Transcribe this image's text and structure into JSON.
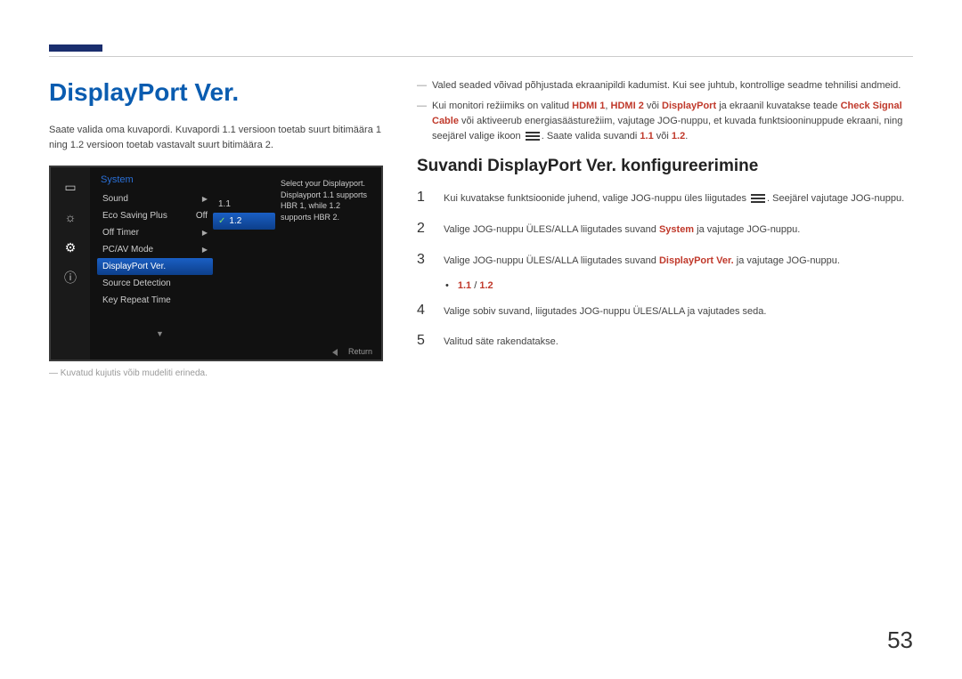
{
  "page": {
    "number": "53"
  },
  "h1": "DisplayPort Ver.",
  "intro": "Saate valida oma kuvapordi. Kuvapordi 1.1 versioon toetab suurt bitimäära 1 ning 1.2 versioon toetab vastavalt suurt bitimäära 2.",
  "osd": {
    "section_title": "System",
    "sidebar_icons": [
      "monitor",
      "sun",
      "gear",
      "info"
    ],
    "selected_sidebar": 2,
    "items": [
      {
        "label": "Sound",
        "value": "",
        "arrow": true
      },
      {
        "label": "Eco Saving Plus",
        "value": "Off",
        "arrow": false
      },
      {
        "label": "Off Timer",
        "value": "",
        "arrow": true
      },
      {
        "label": "PC/AV Mode",
        "value": "",
        "arrow": true
      },
      {
        "label": "DisplayPort Ver.",
        "value": "",
        "arrow": false,
        "selected": true
      },
      {
        "label": "Source Detection",
        "value": "",
        "arrow": false
      },
      {
        "label": "Key Repeat Time",
        "value": "",
        "arrow": false
      }
    ],
    "options": [
      {
        "label": "1.1",
        "selected": false
      },
      {
        "label": "1.2",
        "selected": true
      }
    ],
    "description": "Select your Displayport. Displayport 1.1 supports HBR 1, while 1.2 supports HBR 2.",
    "footer": "Return"
  },
  "caption": "―  Kuvatud kujutis võib mudeliti erineda.",
  "notes": [
    {
      "text": "Valed seaded võivad põhjustada ekraanipildi kadumist. Kui see juhtub, kontrollige seadme tehnilisi andmeid."
    },
    {
      "parts": [
        {
          "t": "Kui monitori režiimiks on valitud "
        },
        {
          "t": "HDMI 1",
          "accent": true
        },
        {
          "t": ", "
        },
        {
          "t": "HDMI 2",
          "accent": true
        },
        {
          "t": " või "
        },
        {
          "t": "DisplayPort",
          "accent": true
        },
        {
          "t": " ja ekraanil kuvatakse teade "
        },
        {
          "t": "Check Signal Cable",
          "accent": true
        },
        {
          "t": " või aktiveerub energiasäästurežiim, vajutage JOG-nuppu, et kuvada funktsiooninuppude ekraani, ning seejärel valige ikoon "
        },
        {
          "icon": true
        },
        {
          "t": ". Saate valida suvandi "
        },
        {
          "t": "1.1",
          "accent": true
        },
        {
          "t": " või "
        },
        {
          "t": "1.2",
          "accent": true
        },
        {
          "t": "."
        }
      ]
    }
  ],
  "h2": "Suvandi DisplayPort Ver. konfigureerimine",
  "steps": [
    {
      "n": "1",
      "parts": [
        {
          "t": "Kui kuvatakse funktsioonide juhend, valige JOG-nuppu üles liigutades "
        },
        {
          "icon": true
        },
        {
          "t": ". Seejärel vajutage JOG-nuppu."
        }
      ]
    },
    {
      "n": "2",
      "parts": [
        {
          "t": "Valige JOG-nuppu ÜLES/ALLA liigutades suvand "
        },
        {
          "t": "System",
          "accent": true
        },
        {
          "t": " ja vajutage JOG-nuppu."
        }
      ]
    },
    {
      "n": "3",
      "parts": [
        {
          "t": "Valige JOG-nuppu ÜLES/ALLA liigutades suvand "
        },
        {
          "t": "DisplayPort Ver.",
          "accent": true
        },
        {
          "t": " ja vajutage JOG-nuppu."
        }
      ]
    },
    {
      "bullet": true,
      "parts": [
        {
          "t": "1.1",
          "accent": true
        },
        {
          "t": " / "
        },
        {
          "t": "1.2",
          "accent": true
        }
      ]
    },
    {
      "n": "4",
      "text": "Valige sobiv suvand, liigutades JOG-nuppu ÜLES/ALLA ja vajutades seda."
    },
    {
      "n": "5",
      "text": "Valitud säte rakendatakse."
    }
  ]
}
